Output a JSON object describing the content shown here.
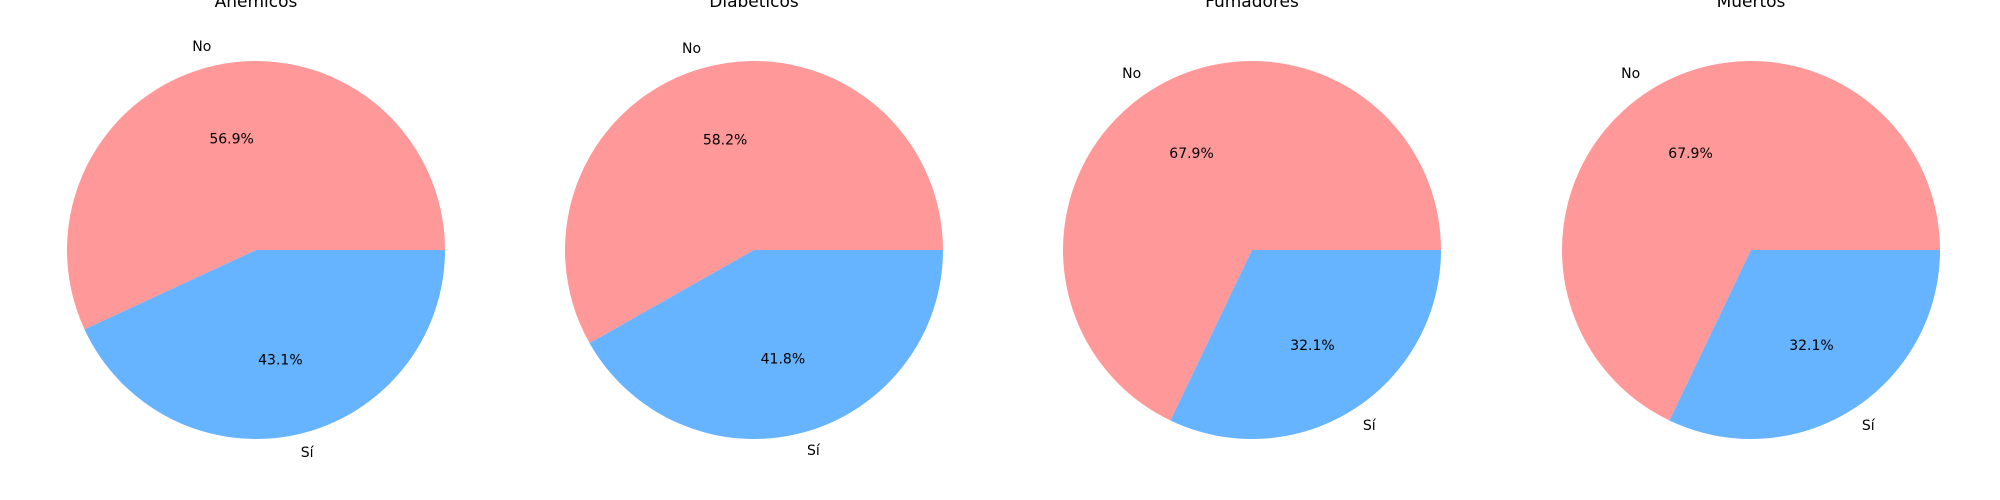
{
  "chart_data": [
    {
      "type": "pie",
      "title": "Anémicos",
      "categories": [
        "No",
        "Sí"
      ],
      "values": [
        56.9,
        43.1
      ],
      "percent_labels": [
        "56.9%",
        "43.1%"
      ],
      "colors": [
        "#ff9999",
        "#66b3ff"
      ],
      "legend": "none"
    },
    {
      "type": "pie",
      "title": "Diabéticos",
      "categories": [
        "No",
        "Sí"
      ],
      "values": [
        58.2,
        41.8
      ],
      "percent_labels": [
        "58.2%",
        "41.8%"
      ],
      "colors": [
        "#ff9999",
        "#66b3ff"
      ],
      "legend": "none"
    },
    {
      "type": "pie",
      "title": "Fumadores",
      "categories": [
        "No",
        "Sí"
      ],
      "values": [
        67.9,
        32.1
      ],
      "percent_labels": [
        "67.9%",
        "32.1%"
      ],
      "colors": [
        "#ff9999",
        "#66b3ff"
      ],
      "legend": "none"
    },
    {
      "type": "pie",
      "title": "Muertos",
      "categories": [
        "No",
        "Sí"
      ],
      "values": [
        67.9,
        32.1
      ],
      "percent_labels": [
        "67.9%",
        "32.1%"
      ],
      "colors": [
        "#ff9999",
        "#66b3ff"
      ],
      "legend": "none"
    }
  ]
}
